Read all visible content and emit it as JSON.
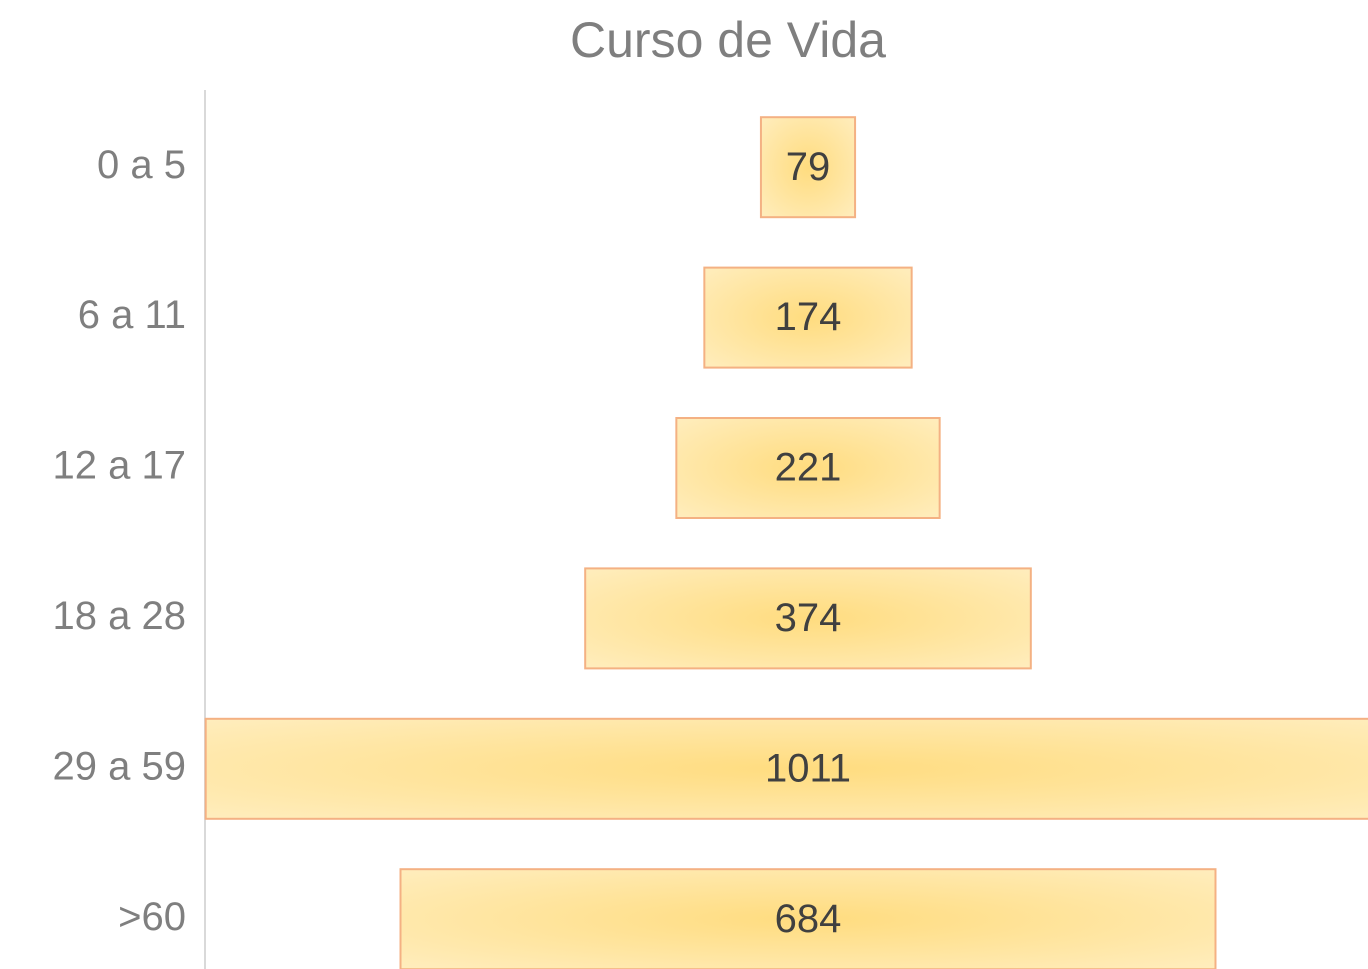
{
  "chart_data": {
    "type": "funnel",
    "title": "Curso de Vida",
    "categories": [
      "0 a 5",
      "6 a 11",
      "12 a 17",
      "18 a 28",
      "29 a 59",
      ">60"
    ],
    "values": [
      79,
      174,
      221,
      374,
      1011,
      684
    ],
    "color": "#fee599",
    "edgecolor": "#f4b183"
  }
}
